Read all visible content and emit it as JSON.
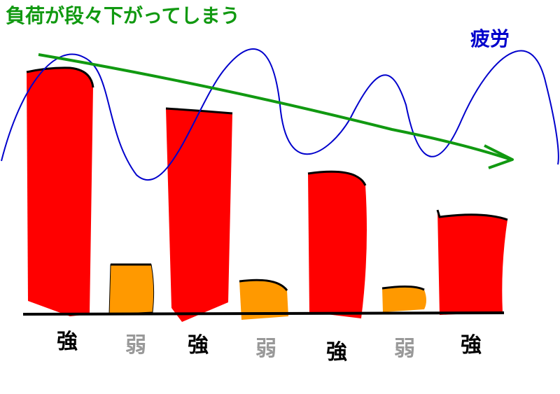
{
  "title": "負荷が段々下がってしまう",
  "fatigue_label": "疲労",
  "bars": [
    {
      "label": "強"
    },
    {
      "label": "弱"
    },
    {
      "label": "強"
    },
    {
      "label": "弱"
    },
    {
      "label": "強"
    },
    {
      "label": "弱"
    },
    {
      "label": "強"
    }
  ]
}
